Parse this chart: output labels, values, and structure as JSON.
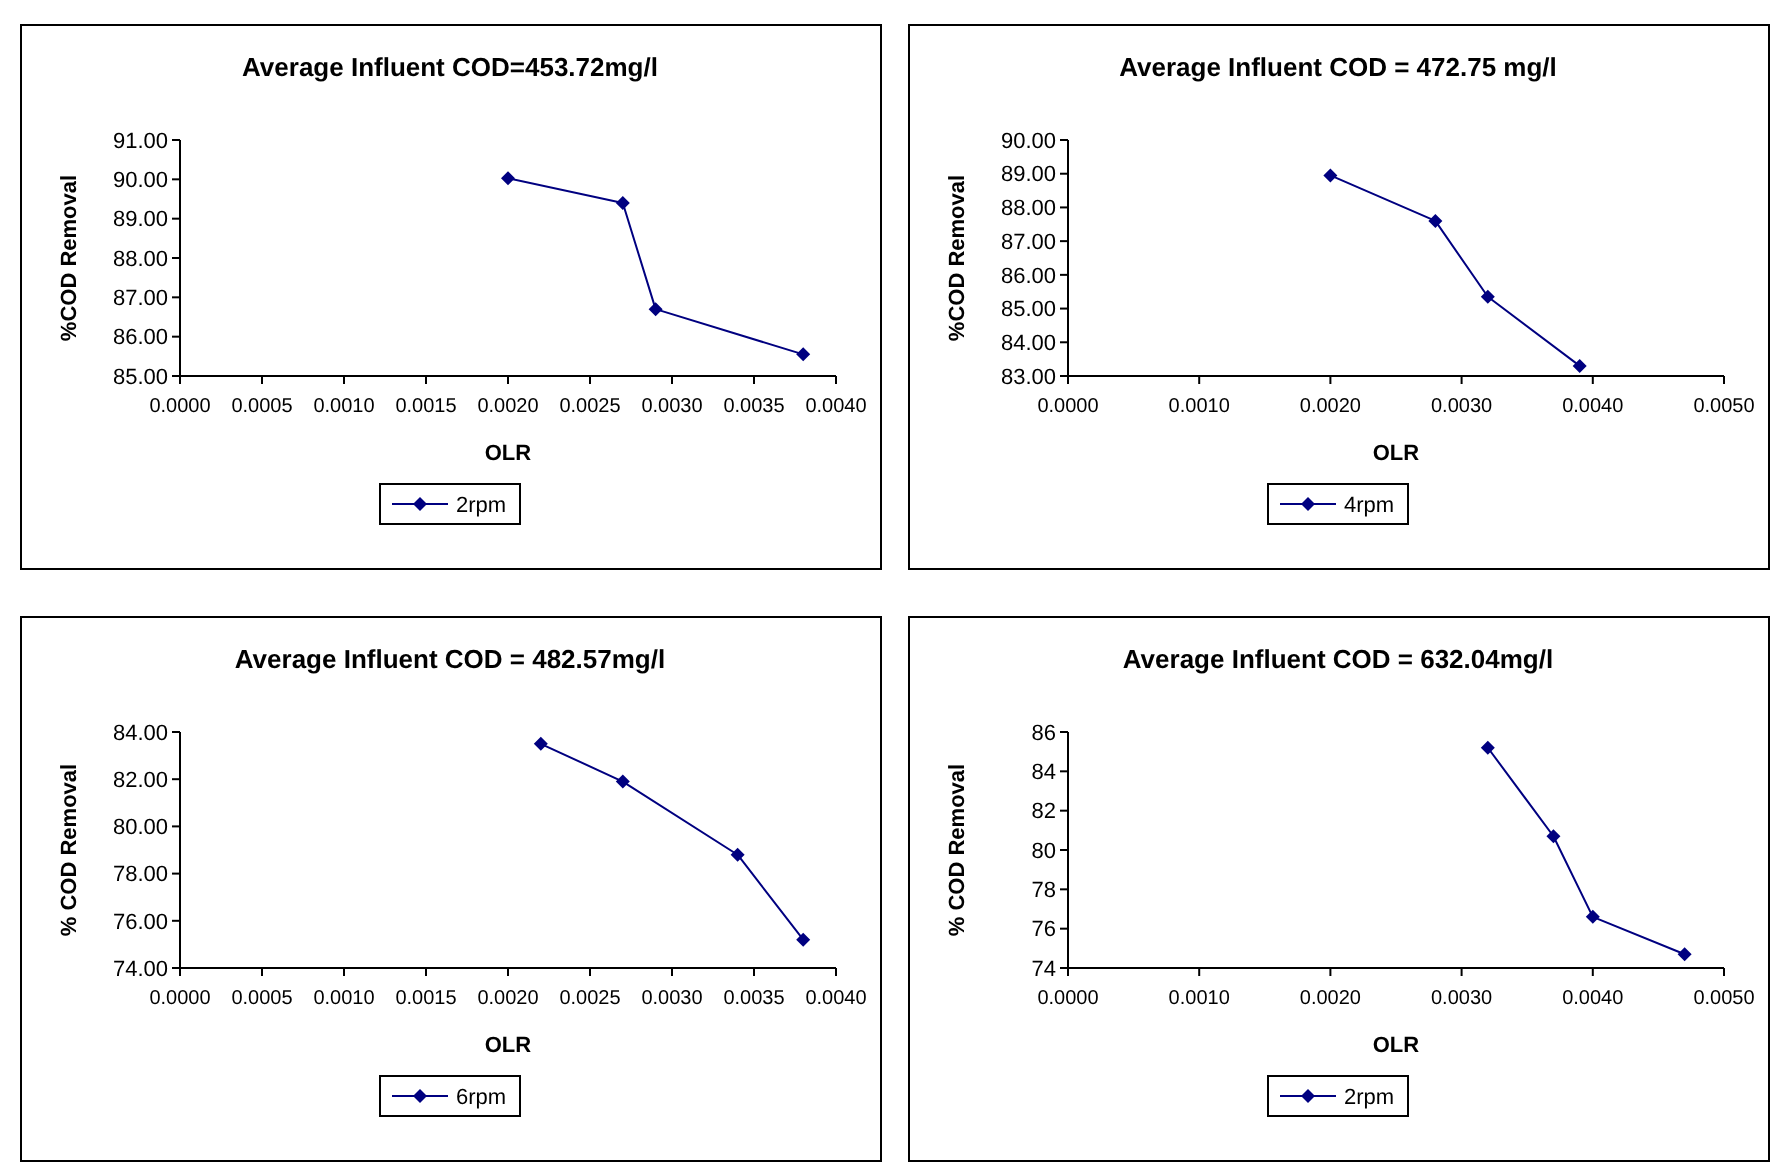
{
  "chart_data": [
    {
      "type": "line",
      "title": "Average Influent COD=453.72mg/l",
      "xlabel": "OLR",
      "ylabel": "%COD Removal",
      "x": [
        0.002,
        0.0027,
        0.0029,
        0.0038
      ],
      "series": [
        {
          "name": "2rpm",
          "color": "#000080",
          "values": [
            90.03,
            89.4,
            86.7,
            85.55
          ]
        }
      ],
      "xlim": [
        0,
        0.004
      ],
      "xticks": [
        {
          "value": 0,
          "label": "0.0000"
        },
        {
          "value": 0.0005,
          "label": "0.0005"
        },
        {
          "value": 0.001,
          "label": "0.0010"
        },
        {
          "value": 0.0015,
          "label": "0.0015"
        },
        {
          "value": 0.002,
          "label": "0.0020"
        },
        {
          "value": 0.0025,
          "label": "0.0025"
        },
        {
          "value": 0.003,
          "label": "0.0030"
        },
        {
          "value": 0.0035,
          "label": "0.0035"
        },
        {
          "value": 0.004,
          "label": "0.0040"
        }
      ],
      "ylim": [
        85,
        91
      ],
      "yticks": [
        {
          "value": 85,
          "label": "85.00"
        },
        {
          "value": 86,
          "label": "86.00"
        },
        {
          "value": 87,
          "label": "87.00"
        },
        {
          "value": 88,
          "label": "88.00"
        },
        {
          "value": 89,
          "label": "89.00"
        },
        {
          "value": 90,
          "label": "90.00"
        },
        {
          "value": 91,
          "label": "91.00"
        }
      ],
      "grid": false,
      "legend": "bottom",
      "marker": "diamond",
      "line_style": "solid"
    },
    {
      "type": "line",
      "title": "Average Influent COD = 472.75 mg/l",
      "xlabel": "OLR",
      "ylabel": "%COD Removal",
      "x": [
        0.002,
        0.0028,
        0.0032,
        0.0039
      ],
      "series": [
        {
          "name": "4rpm",
          "color": "#000080",
          "values": [
            88.95,
            87.6,
            85.35,
            83.3
          ]
        }
      ],
      "xlim": [
        0,
        0.005
      ],
      "xticks": [
        {
          "value": 0,
          "label": "0.0000"
        },
        {
          "value": 0.001,
          "label": "0.0010"
        },
        {
          "value": 0.002,
          "label": "0.0020"
        },
        {
          "value": 0.003,
          "label": "0.0030"
        },
        {
          "value": 0.004,
          "label": "0.0040"
        },
        {
          "value": 0.005,
          "label": "0.0050"
        }
      ],
      "ylim": [
        83,
        90
      ],
      "yticks": [
        {
          "value": 83,
          "label": "83.00"
        },
        {
          "value": 84,
          "label": "84.00"
        },
        {
          "value": 85,
          "label": "85.00"
        },
        {
          "value": 86,
          "label": "86.00"
        },
        {
          "value": 87,
          "label": "87.00"
        },
        {
          "value": 88,
          "label": "88.00"
        },
        {
          "value": 89,
          "label": "89.00"
        },
        {
          "value": 90,
          "label": "90.00"
        }
      ],
      "grid": false,
      "legend": "bottom",
      "marker": "diamond",
      "line_style": "solid"
    },
    {
      "type": "line",
      "title": "Average Influent COD = 482.57mg/l",
      "xlabel": "OLR",
      "ylabel": "% COD Removal",
      "x": [
        0.0022,
        0.0027,
        0.0034,
        0.0038
      ],
      "series": [
        {
          "name": "6rpm",
          "color": "#000080",
          "values": [
            83.5,
            81.9,
            78.8,
            75.2
          ]
        }
      ],
      "xlim": [
        0,
        0.004
      ],
      "xticks": [
        {
          "value": 0,
          "label": "0.0000"
        },
        {
          "value": 0.0005,
          "label": "0.0005"
        },
        {
          "value": 0.001,
          "label": "0.0010"
        },
        {
          "value": 0.0015,
          "label": "0.0015"
        },
        {
          "value": 0.002,
          "label": "0.0020"
        },
        {
          "value": 0.0025,
          "label": "0.0025"
        },
        {
          "value": 0.003,
          "label": "0.0030"
        },
        {
          "value": 0.0035,
          "label": "0.0035"
        },
        {
          "value": 0.004,
          "label": "0.0040"
        }
      ],
      "ylim": [
        74,
        84
      ],
      "yticks": [
        {
          "value": 74,
          "label": "74.00"
        },
        {
          "value": 76,
          "label": "76.00"
        },
        {
          "value": 78,
          "label": "78.00"
        },
        {
          "value": 80,
          "label": "80.00"
        },
        {
          "value": 82,
          "label": "82.00"
        },
        {
          "value": 84,
          "label": "84.00"
        }
      ],
      "grid": false,
      "legend": "bottom",
      "marker": "diamond",
      "line_style": "solid"
    },
    {
      "type": "line",
      "title": "Average Influent COD = 632.04mg/l",
      "xlabel": "OLR",
      "ylabel": "% COD Removal",
      "x": [
        0.0032,
        0.0037,
        0.004,
        0.0047
      ],
      "series": [
        {
          "name": "2rpm",
          "color": "#000080",
          "values": [
            85.2,
            80.7,
            76.6,
            74.7
          ]
        }
      ],
      "xlim": [
        0,
        0.005
      ],
      "xticks": [
        {
          "value": 0,
          "label": "0.0000"
        },
        {
          "value": 0.001,
          "label": "0.0010"
        },
        {
          "value": 0.002,
          "label": "0.0020"
        },
        {
          "value": 0.003,
          "label": "0.0030"
        },
        {
          "value": 0.004,
          "label": "0.0040"
        },
        {
          "value": 0.005,
          "label": "0.0050"
        }
      ],
      "ylim": [
        74,
        86
      ],
      "yticks": [
        74,
        76,
        78,
        80,
        82,
        84,
        86
      ],
      "grid": false,
      "legend": "bottom",
      "marker": "diamond",
      "line_style": "solid"
    }
  ]
}
